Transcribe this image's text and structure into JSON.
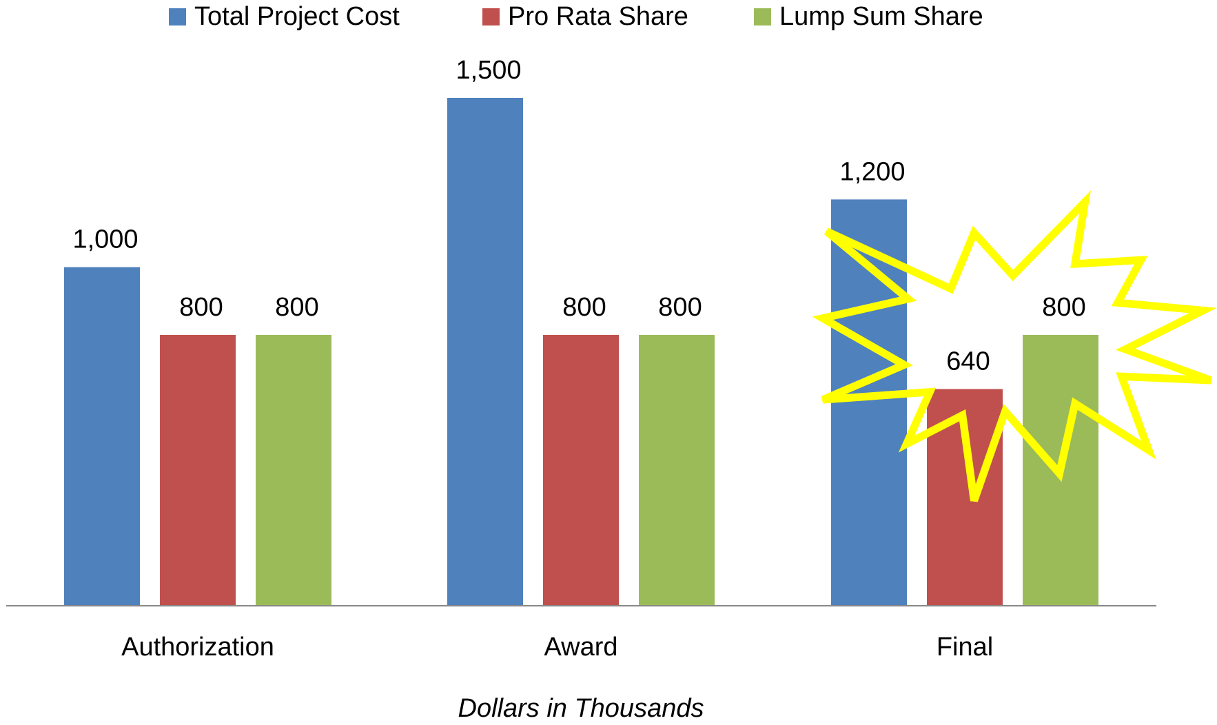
{
  "chart_data": {
    "type": "bar",
    "xlabel": "Dollars in Thousands",
    "categories": [
      "Authorization",
      "Award",
      "Final"
    ],
    "series": [
      {
        "name": "Total Project Cost",
        "color": "#4f81bd",
        "values": [
          1000,
          1500,
          1200
        ],
        "value_labels": [
          "1,000",
          "1,500",
          "1,200"
        ]
      },
      {
        "name": "Pro Rata Share",
        "color": "#c0504d",
        "values": [
          800,
          800,
          640
        ]
      },
      {
        "name": "Lump Sum Share",
        "color": "#9bbb59",
        "values": [
          800,
          800,
          800
        ]
      }
    ],
    "legend": "top"
  }
}
